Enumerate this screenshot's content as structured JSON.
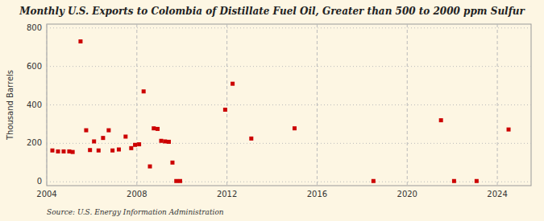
{
  "chart_data": {
    "type": "scatter",
    "title": "Monthly U.S. Exports to Colombia of Distillate Fuel Oil, Greater than 500 to 2000 ppm Sulfur",
    "ylabel": "Thousand Barrels",
    "source": "Source: U.S. Energy Information Administration",
    "color": "#cc0000",
    "marker": "square",
    "grid": true,
    "xlim": [
      2004,
      2025.5
    ],
    "ylim": [
      -20,
      820
    ],
    "xticks": [
      2004,
      2008,
      2012,
      2016,
      2020,
      2024
    ],
    "yticks": [
      0,
      200,
      400,
      600,
      800
    ],
    "x": [
      2004.25,
      2004.5,
      2004.75,
      2005.0,
      2005.15,
      2005.5,
      2005.75,
      2005.92,
      2006.1,
      2006.3,
      2006.5,
      2006.75,
      2006.92,
      2007.2,
      2007.5,
      2007.75,
      2007.92,
      2008.1,
      2008.3,
      2008.58,
      2008.75,
      2008.92,
      2009.08,
      2009.25,
      2009.42,
      2009.58,
      2009.75,
      2009.92,
      2011.92,
      2012.25,
      2013.08,
      2015.0,
      2018.5,
      2021.5,
      2022.08,
      2023.08,
      2024.5
    ],
    "values": [
      163,
      158,
      158,
      158,
      155,
      730,
      268,
      165,
      210,
      163,
      228,
      268,
      163,
      168,
      235,
      175,
      192,
      195,
      470,
      80,
      278,
      275,
      213,
      210,
      208,
      100,
      4,
      4,
      375,
      510,
      225,
      278,
      4,
      320,
      4,
      4,
      272
    ]
  }
}
